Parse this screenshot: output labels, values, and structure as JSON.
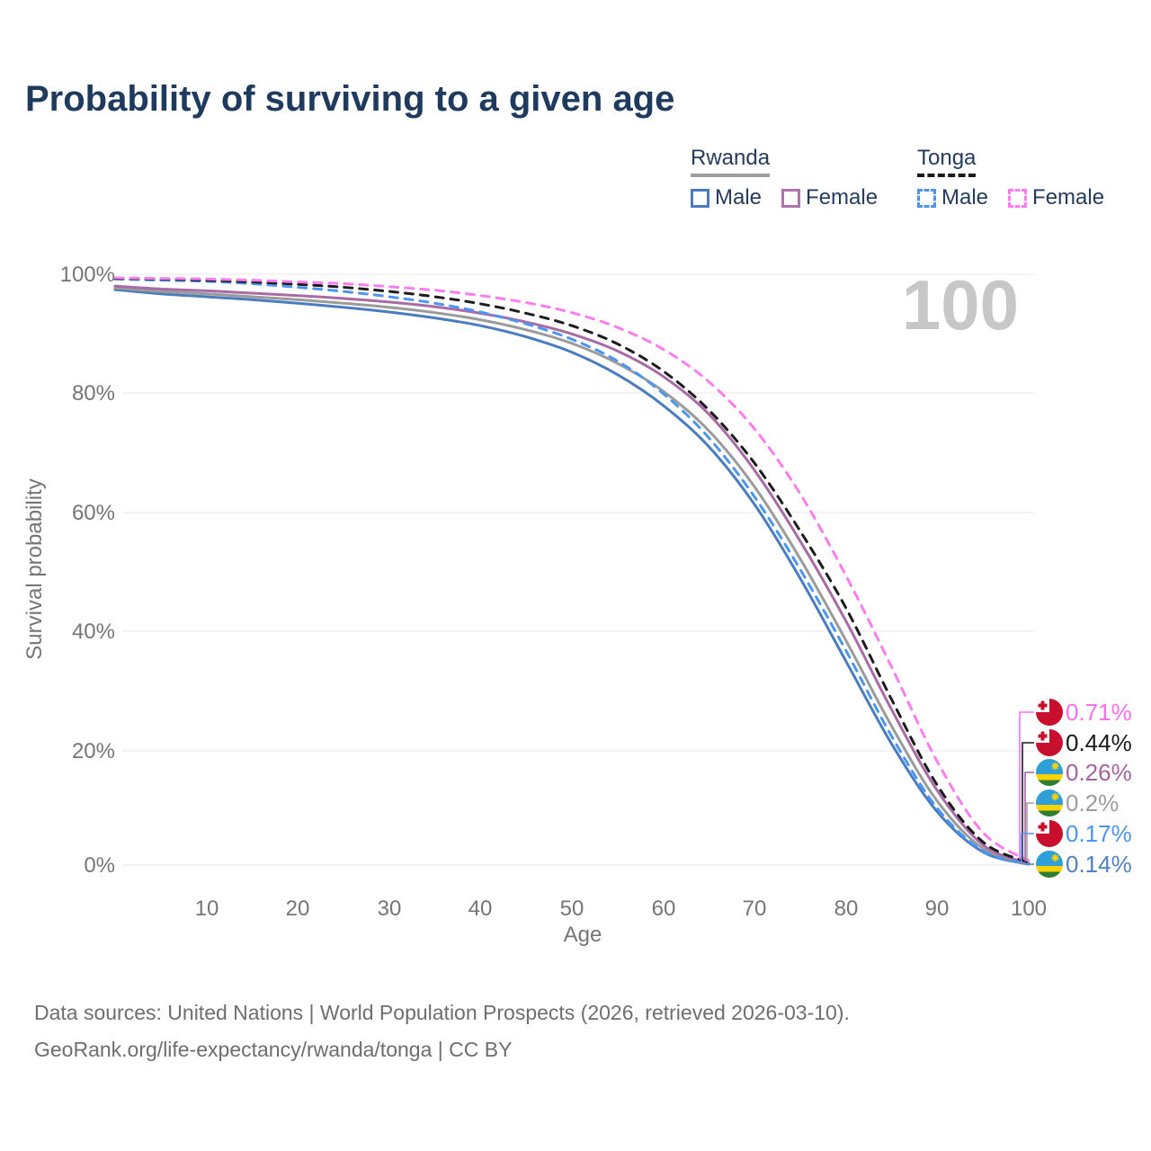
{
  "title": "Probability of surviving to a given age",
  "watermark_age": "100",
  "legend": {
    "groups": [
      {
        "name": "Rwanda",
        "line_style": "solid",
        "underline_color": "#9e9e9e",
        "items": [
          {
            "label": "Male",
            "color": "#4a7cc0"
          },
          {
            "label": "Female",
            "color": "#b173ae"
          }
        ]
      },
      {
        "name": "Tonga",
        "line_style": "dashed",
        "underline_color": "#1a1a1a",
        "items": [
          {
            "label": "Male",
            "color": "#4b96f5"
          },
          {
            "label": "Female",
            "color": "#fb7df0"
          }
        ]
      }
    ]
  },
  "axes": {
    "y_title": "Survival probability",
    "x_title": "Age",
    "y_ticks": [
      "100%",
      "80%",
      "60%",
      "40%",
      "20%",
      "0%"
    ],
    "x_ticks": [
      "10",
      "20",
      "30",
      "40",
      "50",
      "60",
      "70",
      "80",
      "90",
      "100"
    ]
  },
  "footer": {
    "line1": "Data sources: United Nations | World Population Prospects (2026, retrieved 2026-03-10).",
    "line2": "GeoRank.org/life-expectancy/rwanda/tonga | CC BY"
  },
  "chart_data": {
    "type": "line",
    "title": "Probability of surviving to a given age",
    "xlabel": "Age",
    "ylabel": "Survival probability",
    "x_range": [
      0,
      100
    ],
    "y_range_percent": [
      0,
      100
    ],
    "grid": "horizontal",
    "legend_position": "top-right",
    "ages": [
      0,
      5,
      10,
      15,
      20,
      25,
      30,
      35,
      40,
      45,
      50,
      55,
      60,
      65,
      70,
      75,
      80,
      85,
      90,
      95,
      100
    ],
    "series": [
      {
        "name": "Rwanda Male",
        "country": "Rwanda",
        "sex": "Male",
        "style": "solid",
        "color": "#4a7cc0",
        "values": [
          97.4,
          96.7,
          96.2,
          95.7,
          95.1,
          94.4,
          93.6,
          92.6,
          91.3,
          89.4,
          86.8,
          83.0,
          77.8,
          70.8,
          61.0,
          48.5,
          34.5,
          20.5,
          9.0,
          2.2,
          0.14
        ]
      },
      {
        "name": "Rwanda Both sexes",
        "country": "Rwanda",
        "sex": "Both",
        "style": "solid",
        "color": "#9b9b9b",
        "values": [
          97.7,
          97.1,
          96.7,
          96.2,
          95.7,
          95.1,
          94.4,
          93.5,
          92.3,
          90.6,
          88.3,
          84.9,
          80.2,
          73.5,
          64.0,
          51.8,
          38.0,
          23.5,
          10.8,
          2.8,
          0.2
        ]
      },
      {
        "name": "Rwanda Female",
        "country": "Rwanda",
        "sex": "Female",
        "style": "solid",
        "color": "#a86ba6",
        "values": [
          98.0,
          97.5,
          97.2,
          96.8,
          96.4,
          95.9,
          95.3,
          94.5,
          93.4,
          91.9,
          89.9,
          87.0,
          82.7,
          76.3,
          66.8,
          54.8,
          41.3,
          26.3,
          12.6,
          3.4,
          0.26
        ]
      },
      {
        "name": "Tonga Male",
        "country": "Tonga",
        "sex": "Male",
        "style": "dashed",
        "color": "#4b96f5",
        "values": [
          99.2,
          99.0,
          98.8,
          98.4,
          97.8,
          97.1,
          96.2,
          95.1,
          93.6,
          91.6,
          89.0,
          85.3,
          79.8,
          72.3,
          62.3,
          50.0,
          36.3,
          21.8,
          9.6,
          2.4,
          0.17
        ]
      },
      {
        "name": "Tonga Both sexes",
        "country": "Tonga",
        "sex": "Both",
        "style": "dashed",
        "color": "#1c1c1c",
        "values": [
          99.3,
          99.2,
          99.0,
          98.7,
          98.3,
          97.8,
          97.1,
          96.2,
          95.0,
          93.4,
          91.3,
          88.2,
          83.6,
          77.0,
          68.0,
          56.5,
          43.5,
          28.0,
          13.5,
          3.9,
          0.44
        ]
      },
      {
        "name": "Tonga Female",
        "country": "Tonga",
        "sex": "Female",
        "style": "dashed",
        "color": "#fb7df0",
        "values": [
          99.4,
          99.3,
          99.2,
          99.0,
          98.7,
          98.4,
          97.9,
          97.3,
          96.4,
          95.2,
          93.5,
          91.0,
          87.3,
          81.8,
          73.8,
          62.8,
          49.0,
          33.5,
          17.5,
          5.5,
          0.71
        ]
      }
    ],
    "end_labels": [
      {
        "label": "0.71%",
        "country": "Tonga",
        "series": "Tonga Female",
        "color": "#fb6ef0"
      },
      {
        "label": "0.44%",
        "country": "Tonga",
        "series": "Tonga Both sexes",
        "color": "#1a1a1a"
      },
      {
        "label": "0.26%",
        "country": "Rwanda",
        "series": "Rwanda Female",
        "color": "#a4629f"
      },
      {
        "label": "0.2%",
        "country": "Rwanda",
        "series": "Rwanda Both sexes",
        "color": "#9e9e9e"
      },
      {
        "label": "0.17%",
        "country": "Tonga",
        "series": "Tonga Male",
        "color": "#4a94f2"
      },
      {
        "label": "0.14%",
        "country": "Rwanda",
        "series": "Rwanda Male",
        "color": "#5181c2"
      }
    ]
  }
}
